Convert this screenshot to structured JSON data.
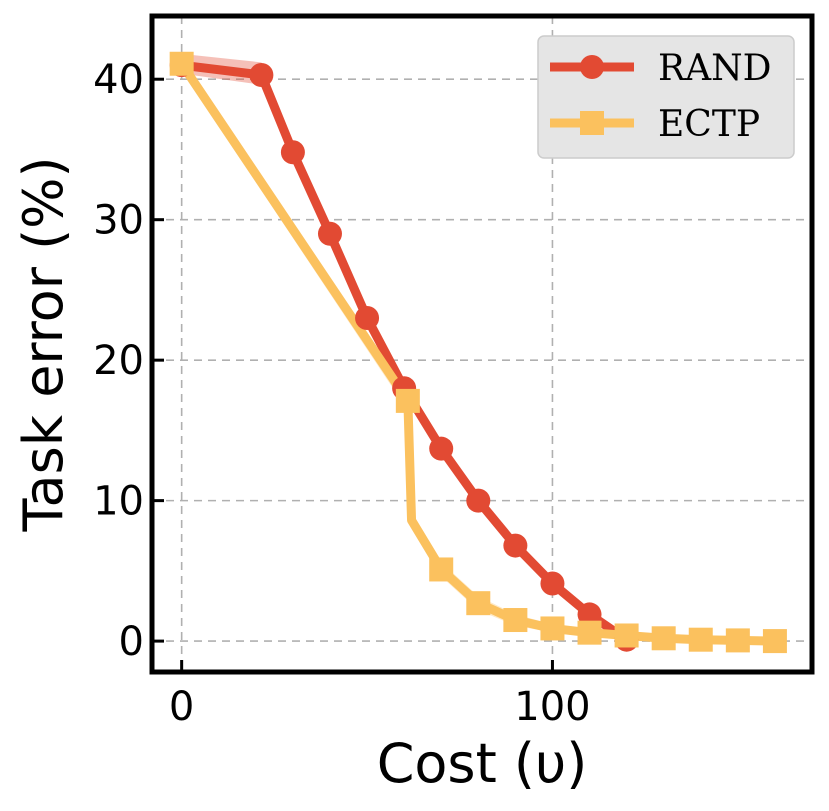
{
  "chart_data": {
    "type": "line",
    "xlabel": "Cost (υ)",
    "ylabel": "Task error (%)",
    "xlim": [
      -8,
      170
    ],
    "ylim": [
      -2.2,
      44.5
    ],
    "xticks": [
      0,
      100
    ],
    "yticks": [
      0,
      10,
      20,
      30,
      40
    ],
    "grid": true,
    "legend_position": "top-right",
    "series": [
      {
        "name": "RAND",
        "color": "#e24a33",
        "marker": "circle",
        "x": [
          0,
          21.5,
          30,
          40,
          50,
          60,
          70,
          80,
          90,
          100,
          110,
          120
        ],
        "y": [
          41.0,
          40.3,
          34.8,
          29.0,
          23.0,
          18.0,
          13.7,
          10.0,
          6.8,
          4.1,
          1.9,
          0.1
        ],
        "band_upper": [
          41.8,
          41.2,
          35.3,
          29.5,
          23.5,
          18.5,
          14.2,
          10.5,
          7.2,
          4.5,
          2.3,
          0.3
        ],
        "band_lower": [
          40.4,
          39.6,
          34.3,
          28.5,
          22.5,
          17.5,
          13.2,
          9.5,
          6.4,
          3.7,
          1.5,
          -0.1
        ]
      },
      {
        "name": "ECTP",
        "color": "#fbc15e",
        "marker": "square",
        "x": [
          0,
          61,
          62,
          70,
          80,
          90,
          100,
          110,
          120,
          130,
          140,
          150,
          160
        ],
        "y": [
          41.1,
          17.1,
          8.6,
          5.1,
          2.7,
          1.5,
          0.9,
          0.6,
          0.4,
          0.2,
          0.1,
          0.05,
          0.0
        ],
        "band_upper": [
          41.6,
          17.6,
          9.1,
          5.6,
          3.2,
          1.9,
          1.2,
          0.9,
          0.6,
          0.4,
          0.3,
          0.2,
          0.15
        ],
        "band_lower": [
          40.6,
          16.4,
          8.1,
          4.6,
          2.2,
          1.1,
          0.6,
          0.3,
          0.2,
          0.0,
          -0.1,
          -0.1,
          -0.15
        ]
      }
    ]
  }
}
